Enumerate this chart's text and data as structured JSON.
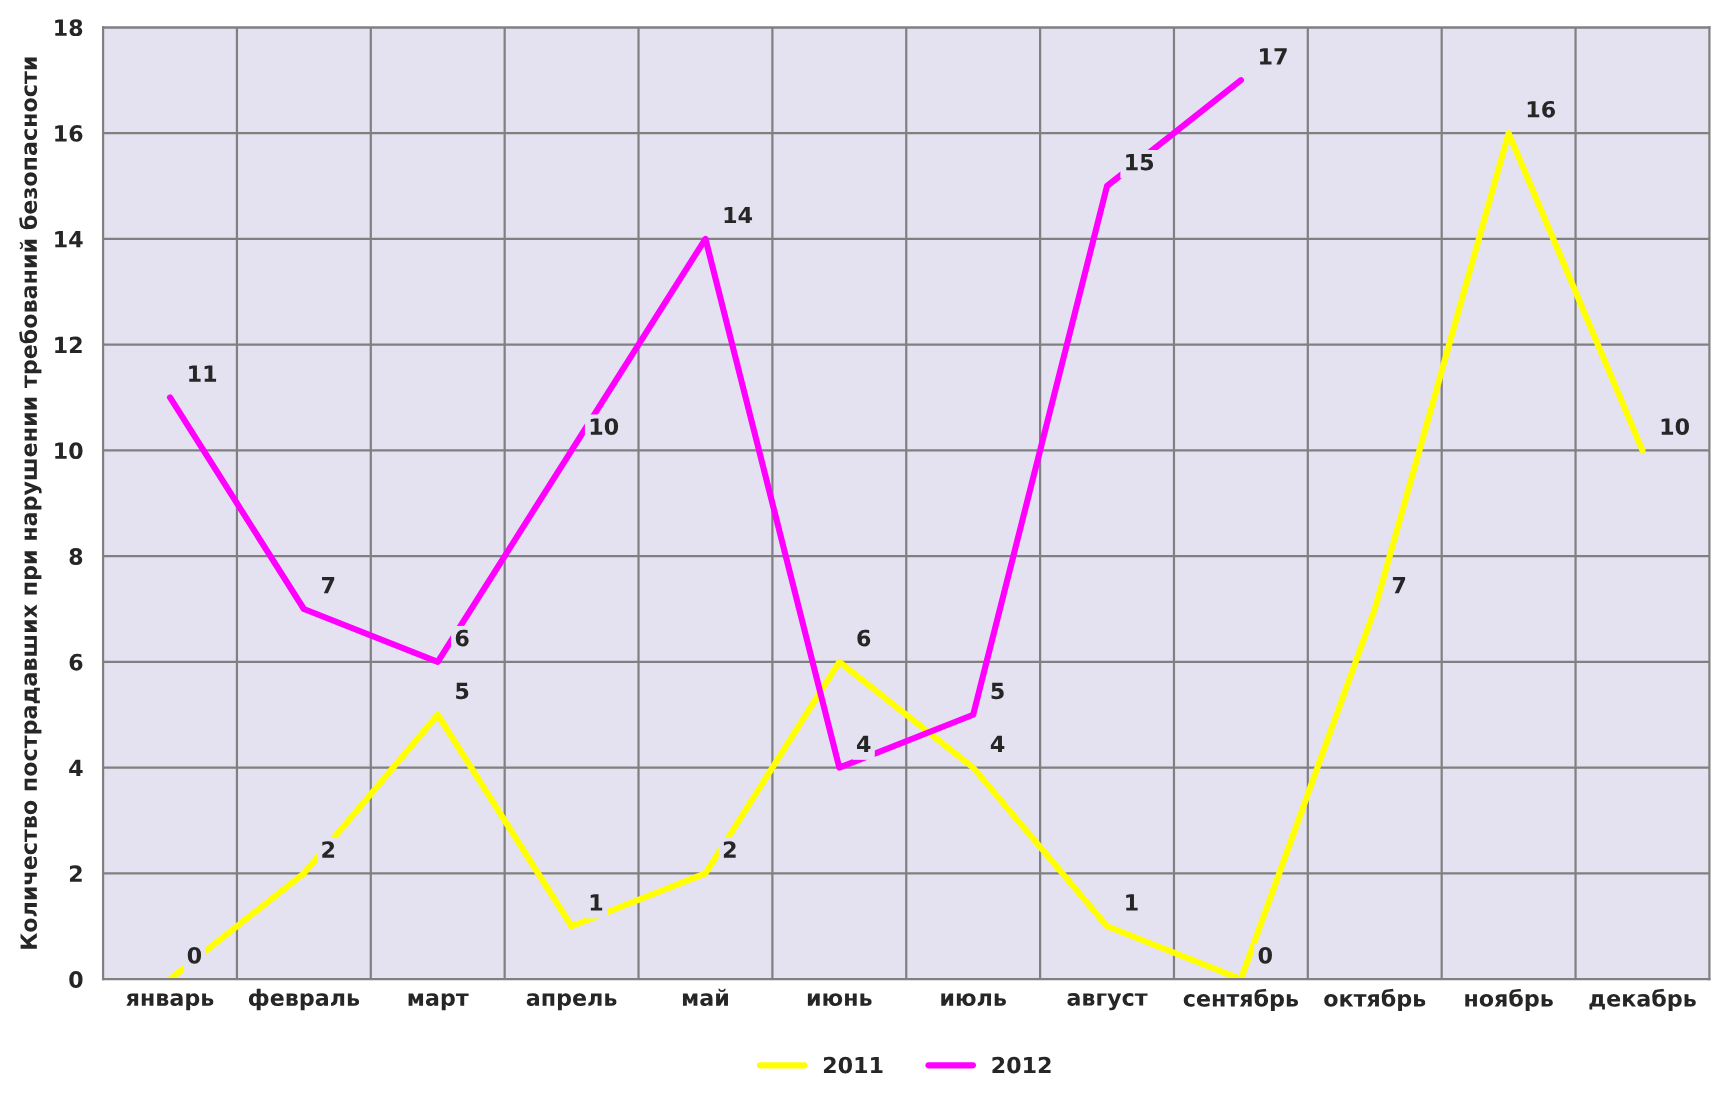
{
  "chart_data": {
    "type": "line",
    "ylabel": "Количество пострадавших при нарушении требований безопасности",
    "categories": [
      "январь",
      "февраль",
      "март",
      "апрель",
      "май",
      "июнь",
      "июль",
      "август",
      "сентябрь",
      "октябрь",
      "ноябрь",
      "декабрь"
    ],
    "series": [
      {
        "name": "2011",
        "color": "#ffff00",
        "values": [
          0,
          2,
          5,
          1,
          2,
          6,
          4,
          1,
          0,
          7,
          16,
          10
        ]
      },
      {
        "name": "2012",
        "color": "#ff00ff",
        "values": [
          11,
          7,
          6,
          10,
          14,
          4,
          5,
          15,
          17,
          null,
          null,
          null
        ]
      }
    ],
    "ylim": [
      0,
      18
    ],
    "yticks": [
      0,
      2,
      4,
      6,
      8,
      10,
      12,
      14,
      16,
      18
    ],
    "grid": true,
    "legend": "bottom",
    "data_labels": true,
    "marker": "none",
    "line_style": "solid"
  }
}
